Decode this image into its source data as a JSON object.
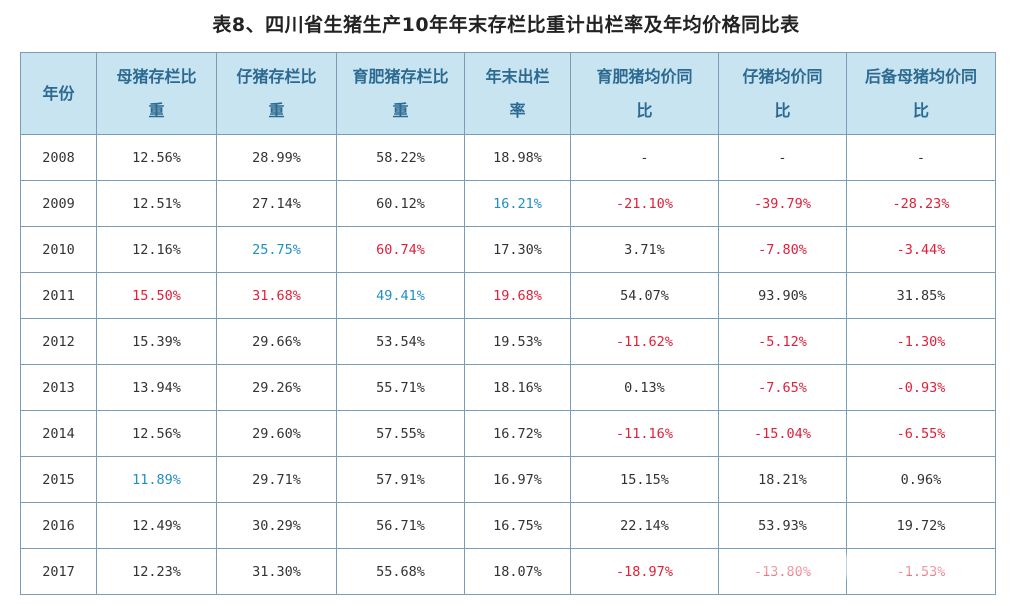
{
  "title": "表8、四川省生猪生产10年年末存栏比重计出栏率及年均价格同比表",
  "headers": [
    [
      "年份"
    ],
    [
      "母猪存栏比",
      "重"
    ],
    [
      "仔猪存栏比",
      "重"
    ],
    [
      "育肥猪存栏比",
      "重"
    ],
    [
      "年末出栏",
      "率"
    ],
    [
      "育肥猪均价同",
      "比"
    ],
    [
      "仔猪均价同",
      "比"
    ],
    [
      "后备母猪均价同",
      "比"
    ]
  ],
  "rows": [
    {
      "cells": [
        "2008",
        "12.56%",
        "28.99%",
        "58.22%",
        "18.98%",
        "-",
        "-",
        "-"
      ],
      "colors": [
        "",
        "",
        "",
        "",
        "",
        "",
        "",
        ""
      ]
    },
    {
      "cells": [
        "2009",
        "12.51%",
        "27.14%",
        "60.12%",
        "16.21%",
        "-21.10%",
        "-39.79%",
        "-28.23%"
      ],
      "colors": [
        "",
        "",
        "",
        "",
        "blue",
        "red",
        "red",
        "red"
      ]
    },
    {
      "cells": [
        "2010",
        "12.16%",
        "25.75%",
        "60.74%",
        "17.30%",
        "3.71%",
        "-7.80%",
        "-3.44%"
      ],
      "colors": [
        "",
        "",
        "blue",
        "red",
        "",
        "",
        "red",
        "red"
      ]
    },
    {
      "cells": [
        "2011",
        "15.50%",
        "31.68%",
        "49.41%",
        "19.68%",
        "54.07%",
        "93.90%",
        "31.85%"
      ],
      "colors": [
        "",
        "red",
        "red",
        "blue",
        "red",
        "",
        "",
        ""
      ]
    },
    {
      "cells": [
        "2012",
        "15.39%",
        "29.66%",
        "53.54%",
        "19.53%",
        "-11.62%",
        "-5.12%",
        "-1.30%"
      ],
      "colors": [
        "",
        "",
        "",
        "",
        "",
        "red",
        "red",
        "red"
      ]
    },
    {
      "cells": [
        "2013",
        "13.94%",
        "29.26%",
        "55.71%",
        "18.16%",
        "0.13%",
        "-7.65%",
        "-0.93%"
      ],
      "colors": [
        "",
        "",
        "",
        "",
        "",
        "",
        "red",
        "red"
      ]
    },
    {
      "cells": [
        "2014",
        "12.56%",
        "29.60%",
        "57.55%",
        "16.72%",
        "-11.16%",
        "-15.04%",
        "-6.55%"
      ],
      "colors": [
        "",
        "",
        "",
        "",
        "",
        "red",
        "red",
        "red"
      ]
    },
    {
      "cells": [
        "2015",
        "11.89%",
        "29.71%",
        "57.91%",
        "16.97%",
        "15.15%",
        "18.21%",
        "0.96%"
      ],
      "colors": [
        "",
        "blue",
        "",
        "",
        "",
        "",
        "",
        ""
      ]
    },
    {
      "cells": [
        "2016",
        "12.49%",
        "30.29%",
        "56.71%",
        "16.75%",
        "22.14%",
        "53.93%",
        "19.72%"
      ],
      "colors": [
        "",
        "",
        "",
        "",
        "",
        "",
        "",
        ""
      ]
    },
    {
      "cells": [
        "2017",
        "12.23%",
        "31.30%",
        "55.68%",
        "18.07%",
        "-18.97%",
        "-13.80%",
        "-1.53%"
      ],
      "colors": [
        "",
        "",
        "",
        "",
        "",
        "red",
        "red",
        "red"
      ]
    }
  ],
  "colors": {
    "header_bg": "#c9e4f1",
    "header_text": "#2c6a92",
    "border": "#7a9cb4",
    "red": "#e0203a",
    "blue": "#1f8fc4",
    "text": "#333333"
  }
}
